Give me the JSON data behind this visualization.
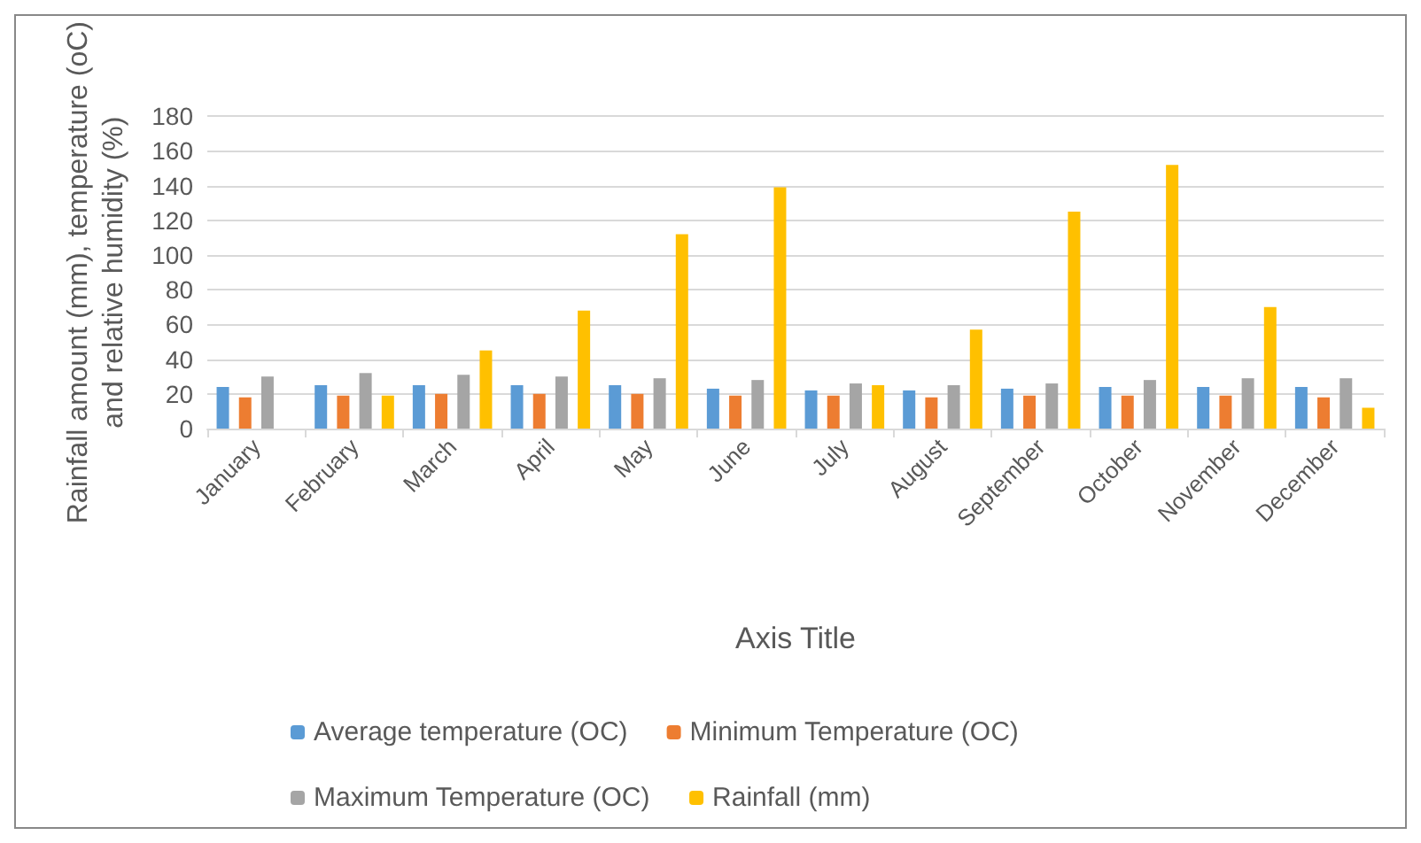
{
  "chart_data": {
    "type": "bar",
    "xlabel": "Axis Title",
    "ylabel": "Rainfall amount (mm), temperature (oC)\nand relative humidity (%)",
    "categories": [
      "January",
      "February",
      "March",
      "April",
      "May",
      "June",
      "July",
      "August",
      "September",
      "October",
      "November",
      "December"
    ],
    "series": [
      {
        "name": "Average temperature (OC)",
        "color": "#5b9bd5",
        "values": [
          24,
          25,
          25,
          25,
          25,
          23,
          22,
          22,
          23,
          24,
          24,
          24
        ]
      },
      {
        "name": "Minimum Temperature (OC)",
        "color": "#ed7d31",
        "values": [
          18,
          19,
          20,
          20,
          20,
          19,
          19,
          18,
          19,
          19,
          19,
          18
        ]
      },
      {
        "name": "Maximum Temperature (OC)",
        "color": "#a5a5a5",
        "values": [
          30,
          32,
          31,
          30,
          29,
          28,
          26,
          25,
          26,
          28,
          29,
          29
        ]
      },
      {
        "name": "Rainfall (mm)",
        "color": "#ffc000",
        "values": [
          0,
          19,
          45,
          68,
          112,
          139,
          25,
          57,
          125,
          152,
          70,
          12
        ]
      }
    ],
    "ylim": [
      0,
      180
    ],
    "yticks": [
      0,
      20,
      40,
      60,
      80,
      100,
      120,
      140,
      160,
      180
    ],
    "grid": "y",
    "legend": "bottom"
  }
}
